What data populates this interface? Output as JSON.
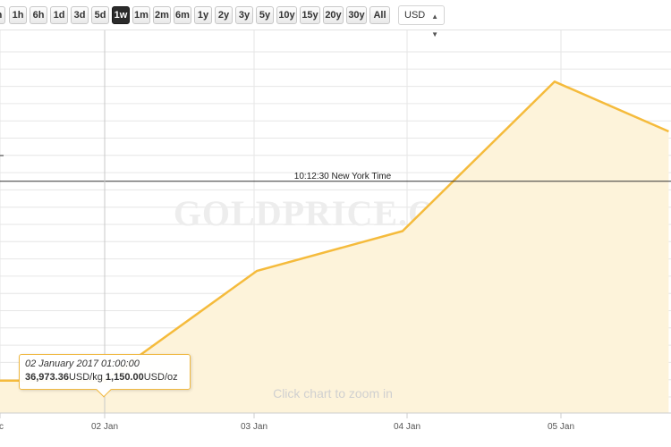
{
  "toolbar": {
    "ranges": [
      "1h",
      "6h",
      "1d",
      "3d",
      "5d",
      "1w",
      "1m",
      "2m",
      "6m",
      "1y",
      "2y",
      "3y",
      "5y",
      "10y",
      "15y",
      "20y",
      "30y",
      "All"
    ],
    "active_range": "1w",
    "currency": "USD",
    "cut_first_label": "h"
  },
  "chart_data": {
    "type": "area",
    "watermark": "GOLDPRICE.ORG",
    "zoom_hint": "Click chart to zoom in",
    "current_time_label": "10:12:30 New York Time",
    "x_ticks": [
      "Dec",
      "02 Jan",
      "03 Jan",
      "04 Jan",
      "05 Jan"
    ],
    "series": [
      {
        "values": [
          {
            "x": "01 Jan 2017",
            "y": 1150.0
          },
          {
            "x": "02 Jan 2017 01:00",
            "y": 1150.0
          },
          {
            "x": "03 Jan 2017 01:00",
            "y": 1161.0
          },
          {
            "x": "04 Jan 2017 00:00",
            "y": 1165.0
          },
          {
            "x": "05 Jan 2017 00:00",
            "y": 1180.0
          },
          {
            "x": "05 Jan 2017 18:00",
            "y": 1175.0
          }
        ]
      }
    ],
    "ylim": [
      1148,
      1182
    ],
    "current_price_line": 1170,
    "grid": true,
    "colors": {
      "line": "#f5bb3c",
      "fill": "#fdf3da",
      "grid": "#e6e6e6",
      "price_line": "#333333"
    },
    "tooltip": {
      "date": "02 January 2017 01:00:00",
      "kg_value": "36,973.36",
      "kg_unit": "USD/kg",
      "oz_value": "1,150.00",
      "oz_unit": "USD/oz"
    }
  }
}
